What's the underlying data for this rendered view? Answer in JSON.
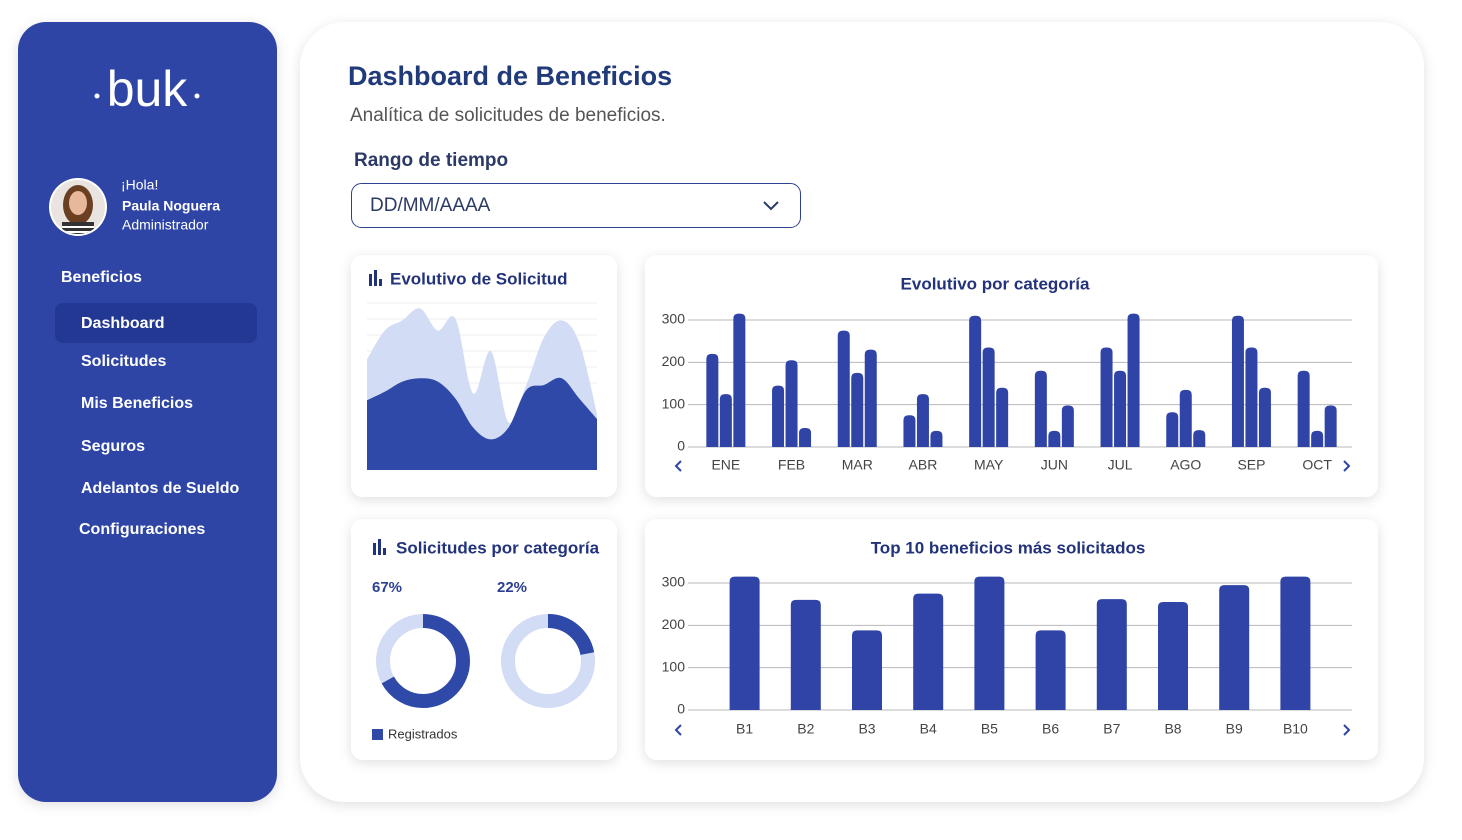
{
  "sidebar": {
    "logo": "buk",
    "greeting": "¡Hola!",
    "user_name": "Paula Noguera",
    "user_role": "Administrador",
    "section": "Beneficios",
    "nav": [
      "Dashboard",
      "Solicitudes",
      "Mis Beneficios",
      "Seguros",
      "Adelantos de Sueldo",
      "Configuraciones"
    ]
  },
  "header": {
    "title": "Dashboard de Beneficios",
    "subtitle": "Analítica de solicitudes de beneficios.",
    "range_label": "Rango de tiempo",
    "date_placeholder": "DD/MM/AAAA"
  },
  "chart_data": [
    {
      "type": "area",
      "title": "Evolutivo de Solicitud",
      "ylim": [
        0,
        100
      ],
      "series": [
        {
          "color": "#d3dcf5",
          "values": [
            65,
            82,
            88,
            95,
            82,
            89,
            45,
            70,
            28,
            50,
            78,
            88,
            75,
            33
          ]
        },
        {
          "color": "#2f49a8",
          "values": [
            41,
            46,
            52,
            54,
            52,
            42,
            25,
            18,
            25,
            47,
            50,
            54,
            42,
            30
          ]
        }
      ]
    },
    {
      "type": "bar",
      "title": "Evolutivo por categoría",
      "categories": [
        "ENE",
        "FEB",
        "MAR",
        "ABR",
        "MAY",
        "JUN",
        "JUL",
        "AGO",
        "SEP",
        "OCT"
      ],
      "series": [
        {
          "color": "#2f44a6",
          "values": [
            220,
            145,
            275,
            75,
            310,
            180,
            235,
            82,
            310,
            180
          ]
        },
        {
          "color": "#2f44a6",
          "values": [
            125,
            205,
            175,
            125,
            235,
            38,
            180,
            135,
            235,
            38
          ]
        },
        {
          "color": "#2f44a6",
          "values": [
            315,
            45,
            230,
            38,
            140,
            98,
            315,
            40,
            140,
            98
          ]
        }
      ],
      "ylim": [
        0,
        320
      ],
      "yticks": [
        0,
        100,
        200,
        300
      ],
      "grid": true
    },
    {
      "type": "donut",
      "title": "Solicitudes por categoría",
      "values": [
        67,
        22
      ],
      "value_labels": [
        "67%",
        "22%"
      ],
      "color": "#2f49a8",
      "track_color": "#d3dcf5",
      "legend": "Registrados"
    },
    {
      "type": "bar",
      "title": "Top 10 beneficios más solicitados",
      "categories": [
        "B1",
        "B2",
        "B3",
        "B4",
        "B5",
        "B6",
        "B7",
        "B8",
        "B9",
        "B10"
      ],
      "values": [
        315,
        260,
        188,
        275,
        315,
        188,
        262,
        255,
        295,
        315
      ],
      "color": "#2f44a6",
      "ylim": [
        0,
        320
      ],
      "yticks": [
        0,
        100,
        200,
        300
      ],
      "grid": true
    }
  ]
}
